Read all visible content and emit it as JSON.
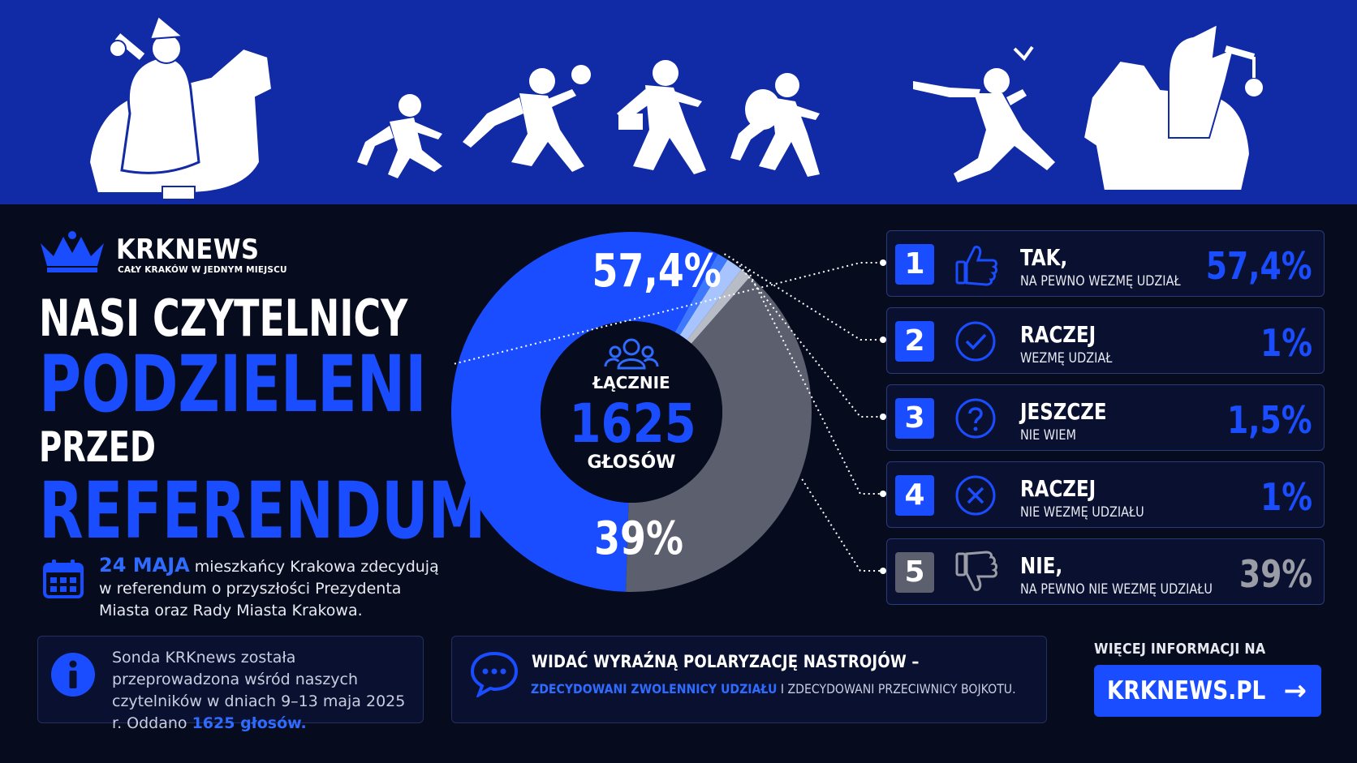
{
  "brand": {
    "name": "KRKNEWS",
    "tagline": "CAŁY KRAKÓW W JEDNYM MIEJSCU"
  },
  "headline": {
    "line1": "NASI CZYTELNICY",
    "line2": "PODZIELENI",
    "line3": "PRZED",
    "line4": "REFERENDUM"
  },
  "description": {
    "date": "24 MAJA",
    "text": " mieszkańcy Krakowa zdecydują w referendum o przyszłości Prezydenta Miasta oraz Rady Miasta Krakowa."
  },
  "info": {
    "text_before": "Sonda KRKnews została przeprowadzona wśród naszych czytelników w dniach 9–13 maja 2025 r. Oddano ",
    "highlight": "1625 głosów."
  },
  "note": {
    "title": "WIDAĆ WYRAŹNĄ POLARYZACJĘ NASTROJÓW –",
    "part_a": "ZDECYDOWANI ZWOLENNICY UDZIAŁU",
    "separator": " I ",
    "part_b": "ZDECYDOWANI PRZECIWNICY BOJKOTU."
  },
  "cta": {
    "label": "WIĘCEJ INFORMACJI NA",
    "button": "KRKNEWS.PL",
    "arrow": "→"
  },
  "chart_data": {
    "type": "pie",
    "center": {
      "label_top": "ŁĄCZNIE",
      "total": "1625",
      "label_bottom": "GŁOSÓW"
    },
    "donut_labels": {
      "big_yes": "57,4%",
      "big_no": "39%"
    },
    "series": [
      {
        "index": "1",
        "line1": "TAK,",
        "line2": "NA PEWNO WEZMĘ UDZIAŁ",
        "value": 57.4,
        "label": "57,4%",
        "color": "#1a4dff",
        "icon": "thumbs-up-icon"
      },
      {
        "index": "2",
        "line1": "RACZEJ",
        "line2": "WEZMĘ UDZIAŁ",
        "value": 1,
        "label": "1%",
        "color": "#3d78ff",
        "icon": "check-circle-icon"
      },
      {
        "index": "3",
        "line1": "JESZCZE",
        "line2": "NIE WIEM",
        "value": 1.5,
        "label": "1,5%",
        "color": "#a8c4ff",
        "icon": "question-circle-icon"
      },
      {
        "index": "4",
        "line1": "RACZEJ",
        "line2": "NIE WEZMĘ UDZIAŁU",
        "value": 1,
        "label": "1%",
        "color": "#b8bcc6",
        "icon": "x-circle-icon"
      },
      {
        "index": "5",
        "line1": "NIE,",
        "line2": "NA PEWNO NIE WEZMĘ UDZIAŁU",
        "value": 39,
        "label": "39%",
        "color": "#5b5f6e",
        "icon": "thumbs-down-icon"
      }
    ]
  }
}
